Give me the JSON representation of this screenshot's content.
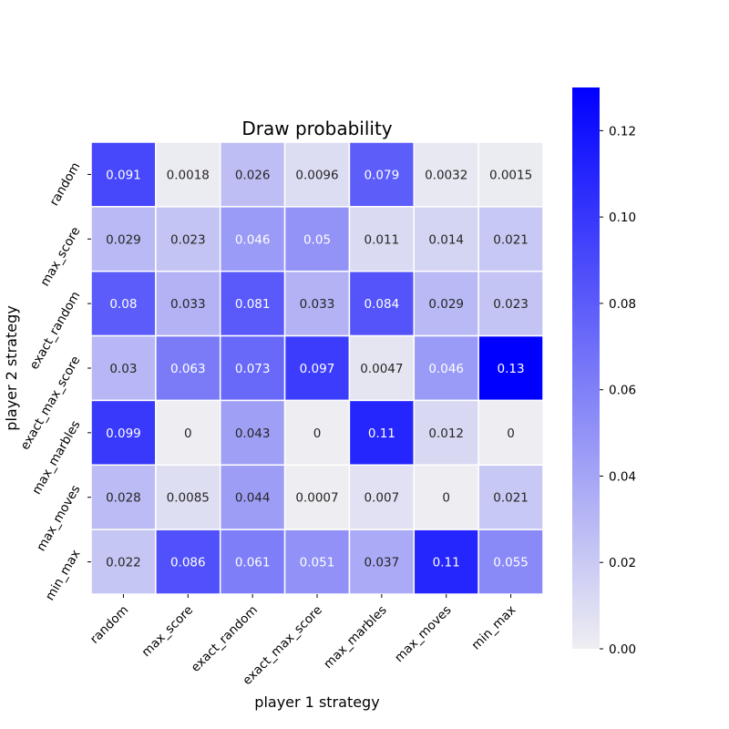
{
  "chart_data": {
    "type": "heatmap",
    "title": "Draw probability",
    "xlabel": "player 1 strategy",
    "ylabel": "player 2 strategy",
    "x_categories": [
      "random",
      "max_score",
      "exact_random",
      "exact_max_score",
      "max_marbles",
      "max_moves",
      "min_max"
    ],
    "y_categories": [
      "random",
      "max_score",
      "exact_random",
      "exact_max_score",
      "max_marbles",
      "max_moves",
      "min_max"
    ],
    "values": [
      [
        0.091,
        0.0018,
        0.026,
        0.0096,
        0.079,
        0.0032,
        0.0015
      ],
      [
        0.029,
        0.023,
        0.046,
        0.05,
        0.011,
        0.014,
        0.021
      ],
      [
        0.08,
        0.033,
        0.081,
        0.033,
        0.084,
        0.029,
        0.023
      ],
      [
        0.03,
        0.063,
        0.073,
        0.097,
        0.0047,
        0.046,
        0.13
      ],
      [
        0.099,
        0,
        0.043,
        0,
        0.11,
        0.012,
        0
      ],
      [
        0.028,
        0.0085,
        0.044,
        0.0007,
        0.007,
        0,
        0.021
      ],
      [
        0.022,
        0.086,
        0.061,
        0.051,
        0.037,
        0.11,
        0.055
      ]
    ],
    "value_labels": [
      [
        "0.091",
        "0.0018",
        "0.026",
        "0.0096",
        "0.079",
        "0.0032",
        "0.0015"
      ],
      [
        "0.029",
        "0.023",
        "0.046",
        "0.05",
        "0.011",
        "0.014",
        "0.021"
      ],
      [
        "0.08",
        "0.033",
        "0.081",
        "0.033",
        "0.084",
        "0.029",
        "0.023"
      ],
      [
        "0.03",
        "0.063",
        "0.073",
        "0.097",
        "0.0047",
        "0.046",
        "0.13"
      ],
      [
        "0.099",
        "0",
        "0.043",
        "0",
        "0.11",
        "0.012",
        "0"
      ],
      [
        "0.028",
        "0.0085",
        "0.044",
        "0.0007",
        "0.007",
        "0",
        "0.021"
      ],
      [
        "0.022",
        "0.086",
        "0.061",
        "0.051",
        "0.037",
        "0.11",
        "0.055"
      ]
    ],
    "colorbar": {
      "vmin": 0,
      "vmax": 0.13,
      "ticks": [
        0,
        0.02,
        0.04,
        0.06,
        0.08,
        0.1,
        0.12
      ],
      "tick_labels": [
        "0.00",
        "0.02",
        "0.04",
        "0.06",
        "0.08",
        "0.10",
        "0.12"
      ],
      "color_low": "#eeeef2",
      "color_high": "#0000ff"
    },
    "grid_line_color": "#ffffff",
    "text_color_dark": "#262626",
    "text_color_light": "#ffffff"
  }
}
